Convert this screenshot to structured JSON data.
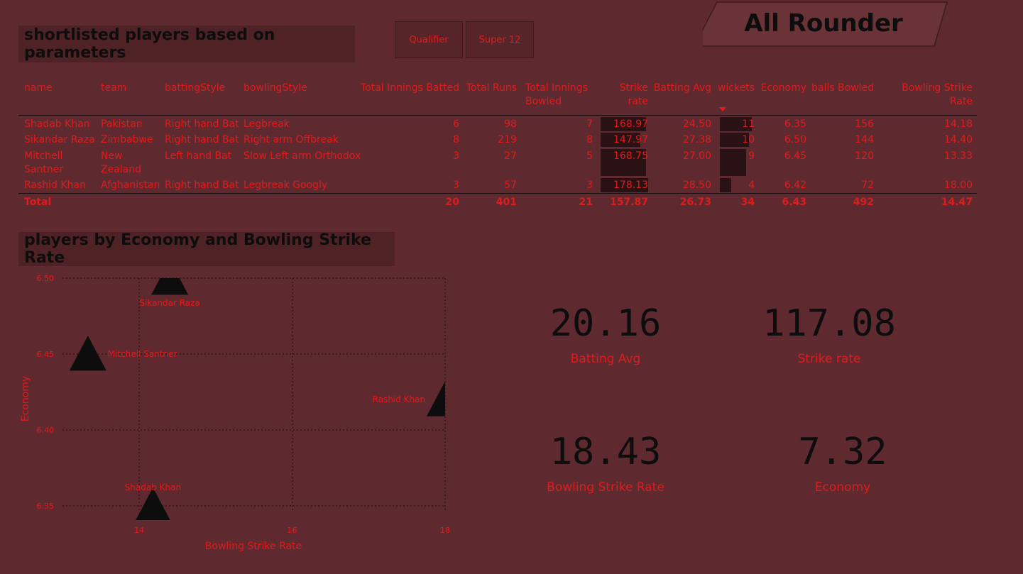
{
  "header": {
    "title": "All Rounder"
  },
  "table_title": "shortlisted players based on parameters",
  "slicer": {
    "buttons": [
      "Qualifier",
      "Super 12"
    ]
  },
  "table": {
    "columns": [
      "name",
      "team",
      "battingStyle",
      "bowlingStyle",
      "Total Innings Batted",
      "Total Runs",
      "Total Innings Bowled",
      "Strike rate",
      "Batting Avg",
      "wickets",
      "Economy",
      "balls Bowled",
      "Bowling Strike Rate"
    ],
    "rows": [
      {
        "name": "Shadab Khan",
        "team": "Pakistan",
        "batting": "Right hand Bat",
        "bowling": "Legbreak",
        "inn_bat": "6",
        "runs": "98",
        "inn_bowl": "7",
        "sr": "168.97",
        "avg": "24.50",
        "wkts": "11",
        "econ": "6.35",
        "balls": "156",
        "bsr": "14.18",
        "sr_frac": 0.95,
        "wk_frac": 1.0
      },
      {
        "name": "Sikandar Raza",
        "team": "Zimbabwe",
        "batting": "Right hand Bat",
        "bowling": "Right arm Offbreak",
        "inn_bat": "8",
        "runs": "219",
        "inn_bowl": "8",
        "sr": "147.97",
        "avg": "27.38",
        "wkts": "10",
        "econ": "6.50",
        "balls": "144",
        "bsr": "14.40",
        "sr_frac": 0.83,
        "wk_frac": 0.91
      },
      {
        "name": "Mitchell Santner",
        "team": "New Zealand",
        "batting": "Left hand Bat",
        "bowling": "Slow Left arm Orthodox",
        "inn_bat": "3",
        "runs": "27",
        "inn_bowl": "5",
        "sr": "168.75",
        "avg": "27.00",
        "wkts": "9",
        "econ": "6.45",
        "balls": "120",
        "bsr": "13.33",
        "sr_frac": 0.95,
        "wk_frac": 0.82
      },
      {
        "name": "Rashid Khan",
        "team": "Afghanistan",
        "batting": "Right hand Bat",
        "bowling": "Legbreak Googly",
        "inn_bat": "3",
        "runs": "57",
        "inn_bowl": "3",
        "sr": "178.13",
        "avg": "28.50",
        "wkts": "4",
        "econ": "6.42",
        "balls": "72",
        "bsr": "18.00",
        "sr_frac": 1.0,
        "wk_frac": 0.36
      }
    ],
    "total": {
      "label": "Total",
      "inn_bat": "20",
      "runs": "401",
      "inn_bowl": "21",
      "sr": "157.87",
      "avg": "26.73",
      "wkts": "34",
      "econ": "6.43",
      "balls": "492",
      "bsr": "14.47"
    }
  },
  "scatter_title": "players by Economy and Bowling Strike Rate",
  "chart_data": {
    "type": "scatter",
    "xlabel": "Bowling Strike Rate",
    "ylabel": "Economy",
    "xlim": [
      13.1,
      18.0
    ],
    "ylim": [
      6.33,
      6.5
    ],
    "x_ticks": [
      "14",
      "16",
      "18"
    ],
    "y_ticks": [
      "6.50",
      "6.45",
      "6.40",
      "6.35"
    ],
    "points": [
      {
        "label": "Sikandar Raza",
        "x": 14.4,
        "y": 6.5
      },
      {
        "label": "Mitchell Santner",
        "x": 13.33,
        "y": 6.45
      },
      {
        "label": "Rashid Khan",
        "x": 18.0,
        "y": 6.42
      },
      {
        "label": "Shadab Khan",
        "x": 14.18,
        "y": 6.35
      }
    ],
    "grid": true
  },
  "cards": [
    {
      "value": "20.16",
      "label": "Batting Avg"
    },
    {
      "value": "117.08",
      "label": "Strike rate"
    },
    {
      "value": "18.43",
      "label": "Bowling Strike Rate"
    },
    {
      "value": "7.32",
      "label": "Economy"
    }
  ],
  "colors": {
    "background": "#5e2a2f",
    "accent": "#e01b1b",
    "dark": "#0d0d0d",
    "bar": "#2a1113"
  }
}
